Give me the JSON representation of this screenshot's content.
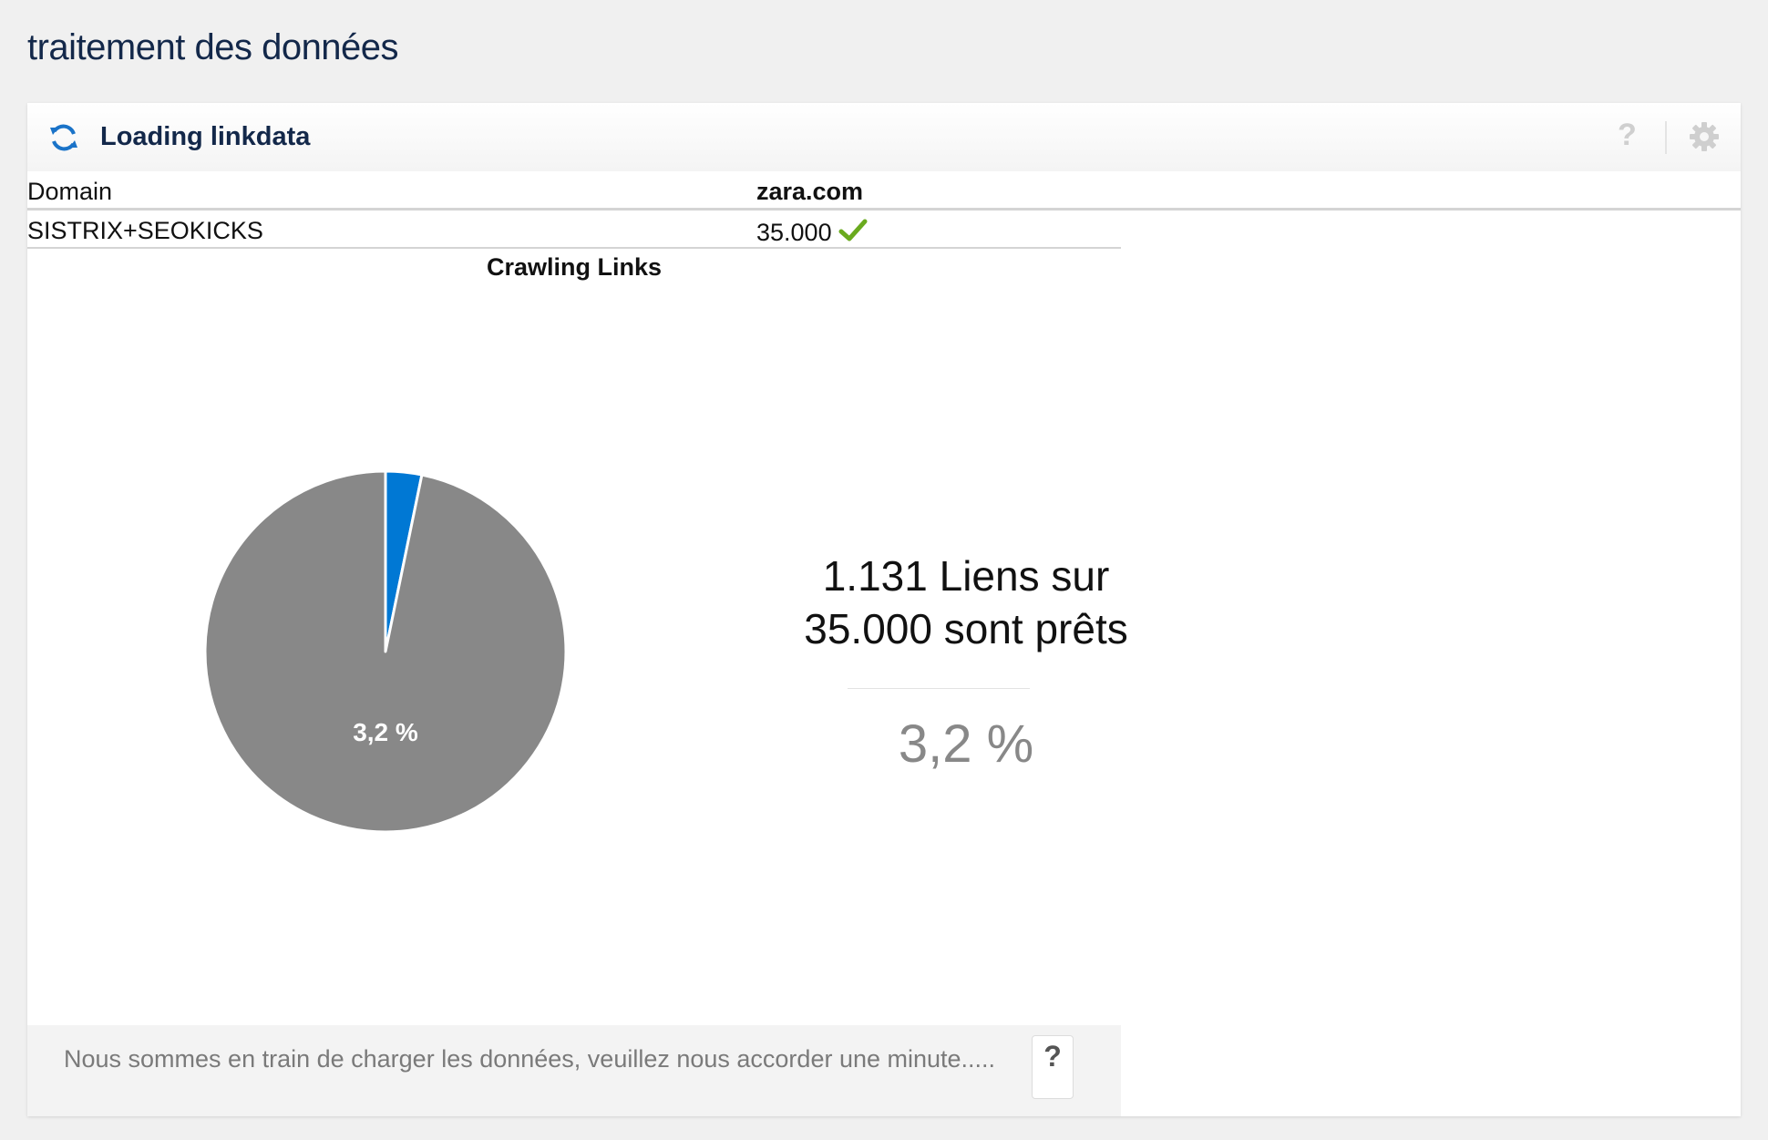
{
  "page": {
    "title": "traitement des données"
  },
  "panel": {
    "title": "Loading linkdata",
    "help_symbol": "?"
  },
  "table": {
    "header": {
      "label": "Domain",
      "value": "zara.com"
    },
    "rows": [
      {
        "label": "SISTRIX+SEOKICKS",
        "value": "35.000",
        "status": "complete"
      }
    ]
  },
  "chart_data": {
    "type": "pie",
    "title": "Crawling Links",
    "series": [
      {
        "values": [
          1131,
          33869
        ],
        "colors": [
          "#0078d4",
          "#888888"
        ]
      }
    ],
    "slice_label": "3,2 %"
  },
  "stats": {
    "line1": "1.131 Liens sur",
    "line2": "35.000 sont prêts",
    "percent": "3,2 %"
  },
  "footer": {
    "message": "Nous sommes en train de charger les données, veuillez nous accorder une minute.....",
    "help_symbol": "?"
  },
  "colors": {
    "accent": "#1a73c8",
    "title": "#13284a",
    "check": "#6aaa1e"
  }
}
